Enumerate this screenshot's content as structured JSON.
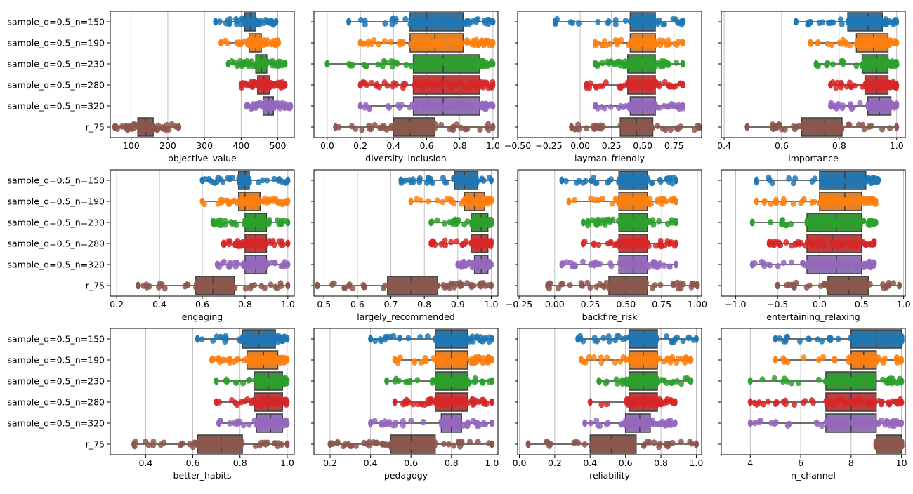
{
  "chart_data": {
    "type": "boxplot",
    "layout": {
      "rows": 3,
      "cols": 4,
      "shared_y": true
    },
    "categories": [
      "sample_q=0.5_n=150",
      "sample_q=0.5_n=190",
      "sample_q=0.5_n=230",
      "sample_q=0.5_n=280",
      "sample_q=0.5_n=320",
      "r_75"
    ],
    "category_colors": [
      "#3274a1",
      "#e1812c",
      "#3a923a",
      "#c03d3e",
      "#9372b2",
      "#845b53"
    ],
    "point_colors": [
      "#1f77b4",
      "#ff7f0e",
      "#2ca02c",
      "#d62728",
      "#9467bd",
      "#8c564b"
    ],
    "grid": "vertical",
    "overlay": "strip (individual samples)",
    "panels": [
      {
        "xlabel": "objective_value",
        "xlim": [
          43,
          545
        ],
        "ticks": [
          100,
          200,
          300,
          400,
          500
        ],
        "tick_labels": [
          "100",
          "200",
          "300",
          "400",
          "500"
        ],
        "boxes": [
          {
            "whisker_low": 330,
            "q1": 410,
            "median": 425,
            "q3": 440,
            "whisker_high": 495
          },
          {
            "whisker_low": 345,
            "q1": 422,
            "median": 440,
            "q3": 455,
            "whisker_high": 502
          },
          {
            "whisker_low": 365,
            "q1": 440,
            "median": 455,
            "q3": 470,
            "whisker_high": 520
          },
          {
            "whisker_low": 400,
            "q1": 445,
            "median": 462,
            "q3": 478,
            "whisker_high": 520
          },
          {
            "whisker_low": 415,
            "q1": 460,
            "median": 475,
            "q3": 488,
            "whisker_high": 535
          },
          {
            "whisker_low": 55,
            "q1": 118,
            "median": 140,
            "q3": 160,
            "whisker_high": 230
          }
        ]
      },
      {
        "xlabel": "diversity_inclusion",
        "xlim": [
          -0.08,
          1.03
        ],
        "ticks": [
          0.0,
          0.2,
          0.4,
          0.6,
          0.8,
          1.0
        ],
        "tick_labels": [
          "0.0",
          "0.2",
          "0.4",
          "0.6",
          "0.8",
          "1.0"
        ],
        "boxes": [
          {
            "whisker_low": 0.13,
            "q1": 0.5,
            "median": 0.6,
            "q3": 0.82,
            "whisker_high": 1.0
          },
          {
            "whisker_low": 0.2,
            "q1": 0.5,
            "median": 0.65,
            "q3": 0.82,
            "whisker_high": 1.0
          },
          {
            "whisker_low": 0.0,
            "q1": 0.52,
            "median": 0.7,
            "q3": 0.92,
            "whisker_high": 1.0
          },
          {
            "whisker_low": 0.2,
            "q1": 0.52,
            "median": 0.7,
            "q3": 0.92,
            "whisker_high": 1.0
          },
          {
            "whisker_low": 0.2,
            "q1": 0.52,
            "median": 0.7,
            "q3": 0.92,
            "whisker_high": 1.0
          },
          {
            "whisker_low": 0.05,
            "q1": 0.4,
            "median": 0.5,
            "q3": 0.65,
            "whisker_high": 1.0
          }
        ]
      },
      {
        "xlabel": "layman_friendly",
        "xlim": [
          -0.5,
          0.97
        ],
        "ticks": [
          -0.5,
          -0.25,
          0.0,
          0.25,
          0.5,
          0.75
        ],
        "tick_labels": [
          "−0.50",
          "−0.25",
          "0.00",
          "0.25",
          "0.50",
          "0.75"
        ],
        "boxes": [
          {
            "whisker_low": -0.2,
            "q1": 0.4,
            "median": 0.5,
            "q3": 0.6,
            "whisker_high": 0.82
          },
          {
            "whisker_low": 0.12,
            "q1": 0.4,
            "median": 0.5,
            "q3": 0.6,
            "whisker_high": 0.82
          },
          {
            "whisker_low": 0.12,
            "q1": 0.38,
            "median": 0.5,
            "q3": 0.6,
            "whisker_high": 0.82
          },
          {
            "whisker_low": 0.05,
            "q1": 0.38,
            "median": 0.5,
            "q3": 0.6,
            "whisker_high": 0.82
          },
          {
            "whisker_low": 0.12,
            "q1": 0.4,
            "median": 0.5,
            "q3": 0.6,
            "whisker_high": 0.82
          },
          {
            "whisker_low": -0.07,
            "q1": 0.32,
            "median": 0.45,
            "q3": 0.58,
            "whisker_high": 0.95
          }
        ]
      },
      {
        "xlabel": "importance",
        "xlim": [
          0.39,
          1.03
        ],
        "ticks": [
          0.4,
          0.6,
          0.8,
          1.0
        ],
        "tick_labels": [
          "0.4",
          "0.6",
          "0.8",
          "1.0"
        ],
        "boxes": [
          {
            "whisker_low": 0.65,
            "q1": 0.83,
            "median": 0.9,
            "q3": 0.95,
            "whisker_high": 1.0
          },
          {
            "whisker_low": 0.7,
            "q1": 0.86,
            "median": 0.92,
            "q3": 0.97,
            "whisker_high": 1.0
          },
          {
            "whisker_low": 0.72,
            "q1": 0.88,
            "median": 0.93,
            "q3": 0.97,
            "whisker_high": 1.0
          },
          {
            "whisker_low": 0.77,
            "q1": 0.89,
            "median": 0.93,
            "q3": 0.97,
            "whisker_high": 1.0
          },
          {
            "whisker_low": 0.77,
            "q1": 0.9,
            "median": 0.94,
            "q3": 0.98,
            "whisker_high": 1.0
          },
          {
            "whisker_low": 0.48,
            "q1": 0.67,
            "median": 0.75,
            "q3": 0.81,
            "whisker_high": 1.0
          }
        ]
      },
      {
        "xlabel": "engaging",
        "xlim": [
          0.17,
          1.03
        ],
        "ticks": [
          0.2,
          0.4,
          0.6,
          0.8,
          1.0
        ],
        "tick_labels": [
          "0.2",
          "0.4",
          "0.6",
          "0.8",
          "1.0"
        ],
        "boxes": [
          {
            "whisker_low": 0.6,
            "q1": 0.77,
            "median": 0.8,
            "q3": 0.82,
            "whisker_high": 1.0
          },
          {
            "whisker_low": 0.6,
            "q1": 0.77,
            "median": 0.8,
            "q3": 0.87,
            "whisker_high": 1.0
          },
          {
            "whisker_low": 0.65,
            "q1": 0.8,
            "median": 0.85,
            "q3": 0.9,
            "whisker_high": 1.0
          },
          {
            "whisker_low": 0.7,
            "q1": 0.8,
            "median": 0.85,
            "q3": 0.9,
            "whisker_high": 1.0
          },
          {
            "whisker_low": 0.67,
            "q1": 0.8,
            "median": 0.85,
            "q3": 0.9,
            "whisker_high": 1.0
          },
          {
            "whisker_low": 0.3,
            "q1": 0.57,
            "median": 0.65,
            "q3": 0.75,
            "whisker_high": 1.0
          }
        ]
      },
      {
        "xlabel": "largely_recommended",
        "xlim": [
          0.47,
          1.02
        ],
        "ticks": [
          0.5,
          0.6,
          0.7,
          0.8,
          0.9,
          1.0
        ],
        "tick_labels": [
          "0.5",
          "0.6",
          "0.7",
          "0.8",
          "0.9",
          "1.0"
        ],
        "boxes": [
          {
            "whisker_low": 0.73,
            "q1": 0.89,
            "median": 0.92,
            "q3": 0.96,
            "whisker_high": 1.0
          },
          {
            "whisker_low": 0.76,
            "q1": 0.92,
            "median": 0.95,
            "q3": 0.98,
            "whisker_high": 1.0
          },
          {
            "whisker_low": 0.82,
            "q1": 0.94,
            "median": 0.97,
            "q3": 0.99,
            "whisker_high": 1.0
          },
          {
            "whisker_low": 0.82,
            "q1": 0.94,
            "median": 0.97,
            "q3": 0.99,
            "whisker_high": 1.0
          },
          {
            "whisker_low": 0.9,
            "q1": 0.95,
            "median": 0.97,
            "q3": 0.99,
            "whisker_high": 1.0
          },
          {
            "whisker_low": 0.48,
            "q1": 0.69,
            "median": 0.76,
            "q3": 0.84,
            "whisker_high": 1.0
          }
        ]
      },
      {
        "xlabel": "backfire_risk",
        "xlim": [
          -0.26,
          1.03
        ],
        "ticks": [
          -0.25,
          0.0,
          0.25,
          0.5,
          0.75,
          1.0
        ],
        "tick_labels": [
          "−0.25",
          "0.00",
          "0.25",
          "0.50",
          "0.75",
          "1.00"
        ],
        "boxes": [
          {
            "whisker_low": 0.05,
            "q1": 0.45,
            "median": 0.55,
            "q3": 0.65,
            "whisker_high": 0.85
          },
          {
            "whisker_low": 0.1,
            "q1": 0.45,
            "median": 0.55,
            "q3": 0.65,
            "whisker_high": 0.85
          },
          {
            "whisker_low": 0.2,
            "q1": 0.45,
            "median": 0.55,
            "q3": 0.65,
            "whisker_high": 0.85
          },
          {
            "whisker_low": 0.2,
            "q1": 0.45,
            "median": 0.55,
            "q3": 0.65,
            "whisker_high": 0.85
          },
          {
            "whisker_low": 0.05,
            "q1": 0.45,
            "median": 0.55,
            "q3": 0.65,
            "whisker_high": 0.85
          },
          {
            "whisker_low": -0.05,
            "q1": 0.38,
            "median": 0.5,
            "q3": 0.65,
            "whisker_high": 1.0
          }
        ]
      },
      {
        "xlabel": "entertaining_relaxing",
        "xlim": [
          -1.17,
          1.02
        ],
        "ticks": [
          -1.0,
          -0.5,
          0.0,
          0.5,
          1.0
        ],
        "tick_labels": [
          "−1.0",
          "−0.5",
          "0.0",
          "0.5",
          "1.0"
        ],
        "boxes": [
          {
            "whisker_low": -0.75,
            "q1": 0.0,
            "median": 0.3,
            "q3": 0.55,
            "whisker_high": 0.7
          },
          {
            "whisker_low": -0.75,
            "q1": 0.0,
            "median": 0.3,
            "q3": 0.5,
            "whisker_high": 0.67
          },
          {
            "whisker_low": -0.8,
            "q1": -0.15,
            "median": 0.2,
            "q3": 0.5,
            "whisker_high": 0.67
          },
          {
            "whisker_low": -0.6,
            "q1": -0.15,
            "median": 0.15,
            "q3": 0.5,
            "whisker_high": 0.65
          },
          {
            "whisker_low": -0.8,
            "q1": -0.15,
            "median": 0.2,
            "q3": 0.5,
            "whisker_high": 0.65
          },
          {
            "whisker_low": -0.5,
            "q1": 0.1,
            "median": 0.35,
            "q3": 0.58,
            "whisker_high": 0.95
          }
        ]
      },
      {
        "xlabel": "better_habits",
        "xlim": [
          0.25,
          1.03
        ],
        "ticks": [
          0.4,
          0.6,
          0.8,
          1.0
        ],
        "tick_labels": [
          "0.4",
          "0.6",
          "0.8",
          "1.0"
        ],
        "boxes": [
          {
            "whisker_low": 0.62,
            "q1": 0.81,
            "median": 0.88,
            "q3": 0.95,
            "whisker_high": 1.0
          },
          {
            "whisker_low": 0.68,
            "q1": 0.83,
            "median": 0.9,
            "q3": 0.96,
            "whisker_high": 1.0
          },
          {
            "whisker_low": 0.7,
            "q1": 0.86,
            "median": 0.92,
            "q3": 0.98,
            "whisker_high": 1.0
          },
          {
            "whisker_low": 0.7,
            "q1": 0.86,
            "median": 0.92,
            "q3": 0.98,
            "whisker_high": 1.0
          },
          {
            "whisker_low": 0.71,
            "q1": 0.87,
            "median": 0.93,
            "q3": 0.98,
            "whisker_high": 1.0
          },
          {
            "whisker_low": 0.35,
            "q1": 0.62,
            "median": 0.72,
            "q3": 0.81,
            "whisker_high": 1.0
          }
        ]
      },
      {
        "xlabel": "pedagogy",
        "xlim": [
          0.12,
          1.03
        ],
        "ticks": [
          0.2,
          0.4,
          0.6,
          0.8,
          1.0
        ],
        "tick_labels": [
          "0.2",
          "0.4",
          "0.6",
          "0.8",
          "1.0"
        ],
        "boxes": [
          {
            "whisker_low": 0.4,
            "q1": 0.72,
            "median": 0.8,
            "q3": 0.88,
            "whisker_high": 1.0
          },
          {
            "whisker_low": 0.52,
            "q1": 0.72,
            "median": 0.8,
            "q3": 0.88,
            "whisker_high": 1.0
          },
          {
            "whisker_low": 0.48,
            "q1": 0.72,
            "median": 0.8,
            "q3": 0.88,
            "whisker_high": 1.0
          },
          {
            "whisker_low": 0.52,
            "q1": 0.72,
            "median": 0.8,
            "q3": 0.88,
            "whisker_high": 1.0
          },
          {
            "whisker_low": 0.4,
            "q1": 0.75,
            "median": 0.8,
            "q3": 0.85,
            "whisker_high": 1.0
          },
          {
            "whisker_low": 0.2,
            "q1": 0.5,
            "median": 0.6,
            "q3": 0.72,
            "whisker_high": 1.0
          }
        ]
      },
      {
        "xlabel": "reliability",
        "xlim": [
          -0.01,
          1.03
        ],
        "ticks": [
          0.0,
          0.2,
          0.4,
          0.6,
          0.8,
          1.0
        ],
        "tick_labels": [
          "0.0",
          "0.2",
          "0.4",
          "0.6",
          "0.8",
          "1.0"
        ],
        "boxes": [
          {
            "whisker_low": 0.33,
            "q1": 0.62,
            "median": 0.7,
            "q3": 0.78,
            "whisker_high": 1.0
          },
          {
            "whisker_low": 0.35,
            "q1": 0.62,
            "median": 0.7,
            "q3": 0.78,
            "whisker_high": 0.97
          },
          {
            "whisker_low": 0.45,
            "q1": 0.62,
            "median": 0.7,
            "q3": 0.78,
            "whisker_high": 0.97
          },
          {
            "whisker_low": 0.4,
            "q1": 0.62,
            "median": 0.7,
            "q3": 0.78,
            "whisker_high": 0.88
          },
          {
            "whisker_low": 0.37,
            "q1": 0.6,
            "median": 0.68,
            "q3": 0.74,
            "whisker_high": 0.88
          },
          {
            "whisker_low": 0.05,
            "q1": 0.4,
            "median": 0.52,
            "q3": 0.66,
            "whisker_high": 1.0
          }
        ]
      },
      {
        "xlabel": "n_channel",
        "xlim": [
          2.85,
          10.15
        ],
        "ticks": [
          4,
          6,
          8,
          10
        ],
        "tick_labels": [
          "4",
          "6",
          "8",
          "10"
        ],
        "boxes": [
          {
            "whisker_low": 5,
            "q1": 8,
            "median": 9,
            "q3": 10,
            "whisker_high": 10
          },
          {
            "whisker_low": 5,
            "q1": 8,
            "median": 8.5,
            "q3": 9,
            "whisker_high": 10
          },
          {
            "whisker_low": 4,
            "q1": 7,
            "median": 8,
            "q3": 9,
            "whisker_high": 10
          },
          {
            "whisker_low": 4,
            "q1": 7,
            "median": 8,
            "q3": 9,
            "whisker_high": 10
          },
          {
            "whisker_low": 4,
            "q1": 7,
            "median": 8,
            "q3": 9,
            "whisker_high": 10
          },
          {
            "whisker_low": 9,
            "q1": 9,
            "median": 10,
            "q3": 10,
            "whisker_high": 10
          }
        ]
      }
    ]
  }
}
